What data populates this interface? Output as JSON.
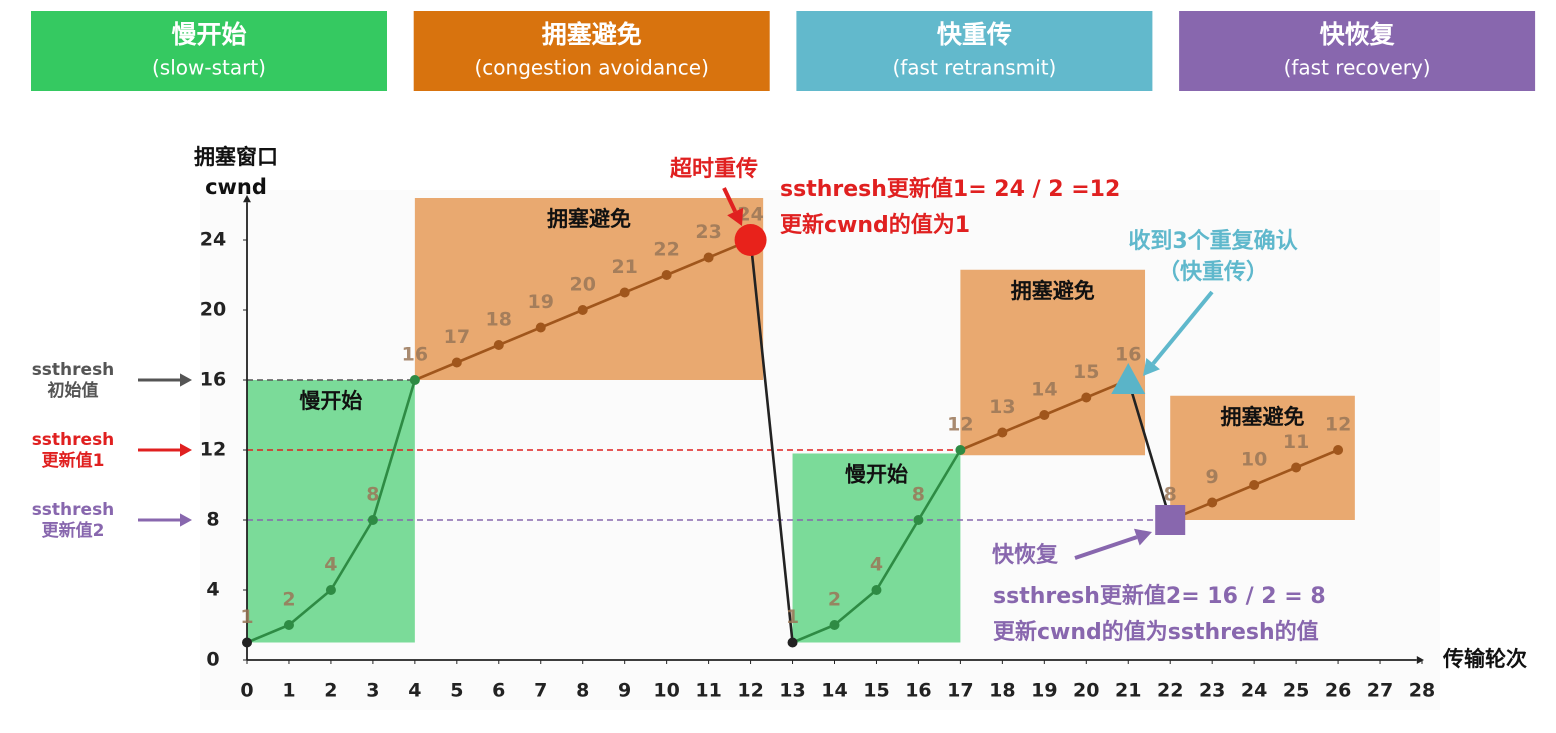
{
  "phases": [
    {
      "title": "慢开始",
      "subtitle": "(slow-start)",
      "color": "#35c961"
    },
    {
      "title": "拥塞避免",
      "subtitle": "(congestion avoidance)",
      "color": "#d8730e"
    },
    {
      "title": "快重传",
      "subtitle": "(fast retransmit)",
      "color": "#62b9cc"
    },
    {
      "title": "快恢复",
      "subtitle": "(fast recovery)",
      "color": "#8867ae"
    }
  ],
  "chart_data": {
    "type": "line",
    "y_label": [
      "拥塞窗口",
      "cwnd"
    ],
    "x_label": "传输轮次",
    "x": [
      0,
      1,
      2,
      3,
      4,
      5,
      6,
      7,
      8,
      9,
      10,
      11,
      12,
      13,
      14,
      15,
      16,
      17,
      18,
      19,
      20,
      21,
      22,
      23,
      24,
      25,
      26
    ],
    "values": [
      1,
      2,
      4,
      8,
      16,
      17,
      18,
      19,
      20,
      21,
      22,
      23,
      24,
      1,
      2,
      4,
      8,
      12,
      13,
      14,
      15,
      16,
      8,
      9,
      10,
      11,
      12
    ],
    "colors": [
      "#222222",
      "#2e8b44",
      "#2e8b44",
      "#2e8b44",
      "#2e8b44",
      "#a0561c",
      "#a0561c",
      "#a0561c",
      "#a0561c",
      "#a0561c",
      "#a0561c",
      "#a0561c",
      "#a0561c",
      "#222222",
      "#2e8b44",
      "#2e8b44",
      "#2e8b44",
      "#2e8b44",
      "#a0561c",
      "#a0561c",
      "#a0561c",
      "#a0561c",
      "#222222",
      "#a0561c",
      "#a0561c",
      "#a0561c",
      "#a0561c"
    ],
    "xlim": [
      0,
      28
    ],
    "ylim": [
      0,
      26
    ],
    "xticks": [
      0,
      1,
      2,
      3,
      4,
      5,
      6,
      7,
      8,
      9,
      10,
      11,
      12,
      13,
      14,
      15,
      16,
      17,
      18,
      19,
      20,
      21,
      22,
      23,
      24,
      25,
      26,
      27,
      28
    ],
    "yticks": [
      0,
      4,
      8,
      12,
      16,
      20,
      24
    ],
    "regions": [
      {
        "label": "慢开始",
        "x": [
          0,
          4
        ],
        "y": [
          1,
          16
        ],
        "color": "#74d993"
      },
      {
        "label": "拥塞避免",
        "x": [
          4,
          12.3
        ],
        "y": [
          16,
          26.4
        ],
        "color": "#e8a468"
      },
      {
        "label": "慢开始",
        "x": [
          13,
          17
        ],
        "y": [
          1,
          11.8
        ],
        "color": "#74d993"
      },
      {
        "label": "拥塞避免",
        "x": [
          17,
          21.4
        ],
        "y": [
          11.7,
          22.3
        ],
        "color": "#e8a468"
      },
      {
        "label": "拥塞避免",
        "x": [
          22,
          26.4
        ],
        "y": [
          8,
          15.1
        ],
        "color": "#e8a468"
      }
    ],
    "thresholds": [
      {
        "value": 16,
        "label": [
          "ssthresh",
          "初始值"
        ],
        "color": "#555555",
        "x_end": 4
      },
      {
        "value": 12,
        "label": [
          "ssthresh",
          "更新值1"
        ],
        "color": "#e02020",
        "x_end": 17
      },
      {
        "value": 8,
        "label": [
          "ssthresh",
          "更新值2"
        ],
        "color": "#8867ae",
        "x_end": 22
      }
    ],
    "markers": [
      {
        "point": 12,
        "shape": "circle",
        "color": "#e8221b"
      },
      {
        "point": 21,
        "shape": "triangle",
        "color": "#5ab4c8"
      },
      {
        "point": 22,
        "shape": "square",
        "color": "#8867ae"
      }
    ],
    "annotations": [
      {
        "lines": [
          "超时重传"
        ],
        "color": "#e02020"
      },
      {
        "lines": [
          "ssthresh更新值1= 24 / 2 =12",
          "更新cwnd的值为1"
        ],
        "color": "#e02020"
      },
      {
        "lines": [
          "收到3个重复确认",
          "（快重传）"
        ],
        "color": "#5fb8cc"
      },
      {
        "lines": [
          "快恢复"
        ],
        "color": "#8867ae"
      },
      {
        "lines": [
          "ssthresh更新值2= 16 / 2 = 8",
          "更新cwnd的值为ssthresh的值"
        ],
        "color": "#8867ae"
      }
    ]
  }
}
